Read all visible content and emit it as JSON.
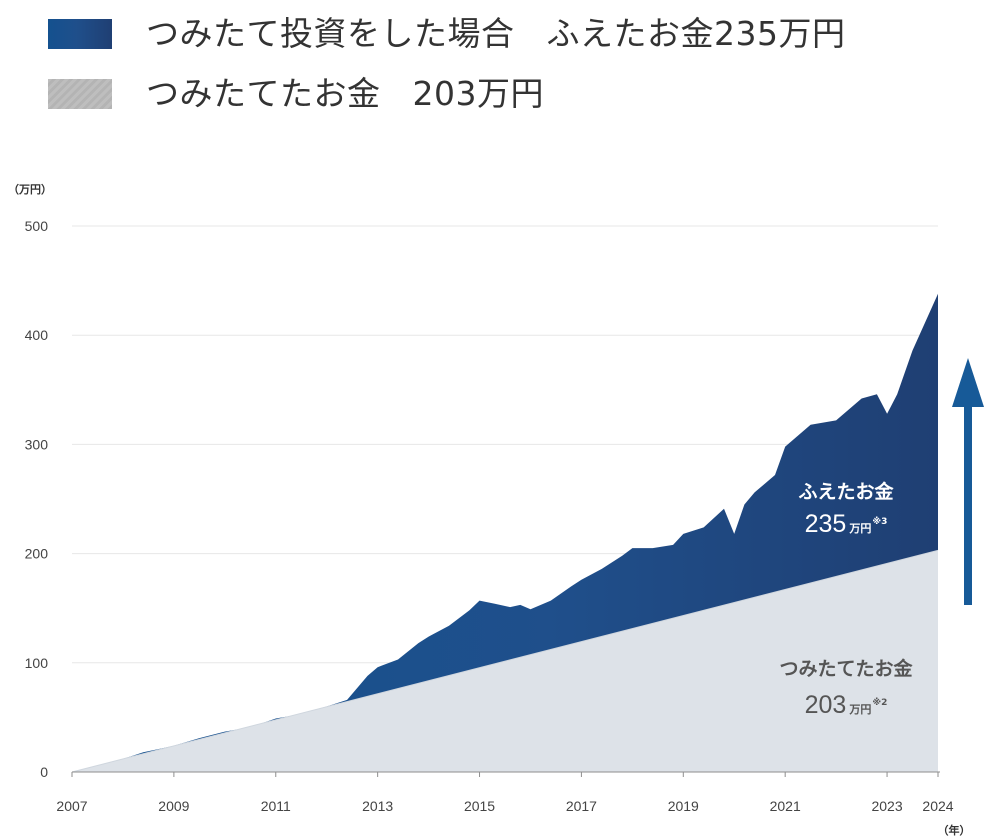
{
  "legend": [
    {
      "label": "つみたて投資をした場合",
      "amount": "ふえたお金235万円"
    },
    {
      "label": "つみたてたお金",
      "amount": "203万円"
    }
  ],
  "colors": {
    "investment_dark": "#1f3f73",
    "investment_mid": "#1f4f8b",
    "investment_light": "#14518f",
    "contribution_fill": "#dde2e8",
    "legend_gray": "#b7b7b7",
    "grid": "#e7e7e7",
    "arrow": "#175a98",
    "text": "#333333",
    "annotation_white": "#ffffff",
    "annotation_gray": "#555555"
  },
  "icons": {
    "growth_arrow": "arrow-up-icon"
  },
  "chart_data": {
    "type": "area",
    "unit_label": "（万円）",
    "year_unit_label": "（年）",
    "x_axis": {
      "min": 2007,
      "max": 2024,
      "tick_labels": [
        "2007",
        "2009",
        "2011",
        "2013",
        "2015",
        "2017",
        "2019",
        "2021",
        "2023",
        "2024"
      ],
      "tick_values": [
        2007,
        2009,
        2011,
        2013,
        2015,
        2017,
        2019,
        2021,
        2023,
        2024
      ]
    },
    "y_axis": {
      "min": 0,
      "max": 500,
      "tick_labels": [
        "0",
        "100",
        "200",
        "300",
        "400",
        "500"
      ],
      "tick_values": [
        0,
        100,
        200,
        300,
        400,
        500
      ]
    },
    "grid": true,
    "series": [
      {
        "name": "つみたて投資をした場合",
        "x": [
          2007.0,
          2007.5,
          2008.0,
          2008.4,
          2008.8,
          2009.0,
          2009.5,
          2010.0,
          2010.5,
          2011.0,
          2011.5,
          2012.0,
          2012.4,
          2012.8,
          2013.0,
          2013.4,
          2013.8,
          2014.0,
          2014.4,
          2014.8,
          2015.0,
          2015.3,
          2015.6,
          2015.8,
          2016.0,
          2016.4,
          2016.8,
          2017.0,
          2017.4,
          2017.8,
          2018.0,
          2018.4,
          2018.8,
          2019.0,
          2019.4,
          2019.8,
          2020.0,
          2020.2,
          2020.4,
          2020.8,
          2021.0,
          2021.5,
          2022.0,
          2022.5,
          2022.8,
          2023.0,
          2023.2,
          2023.5,
          2024.0
        ],
        "y": [
          0.0,
          6.0,
          12.0,
          18.0,
          22.0,
          24.0,
          31.0,
          37.0,
          41.0,
          49.0,
          53.0,
          60.0,
          66.0,
          88.0,
          96.0,
          103.0,
          118.0,
          124.0,
          134.0,
          148.0,
          157.0,
          154.0,
          151.0,
          153.0,
          149.0,
          157.0,
          170.0,
          176.0,
          186.0,
          198.0,
          205.0,
          205.0,
          208.0,
          218.0,
          224.0,
          241.0,
          218.0,
          245.0,
          256.0,
          272.0,
          298.0,
          318.0,
          322.0,
          342.0,
          346.0,
          328.0,
          346.0,
          386.0,
          438.0
        ]
      },
      {
        "name": "つみたてたお金",
        "x": [
          2007,
          2024
        ],
        "y": [
          0,
          203
        ]
      }
    ],
    "annotations": [
      {
        "title": "ふえたお金",
        "value": "235",
        "unit": "万円",
        "note": "※3",
        "series": "つみたて投資をした場合"
      },
      {
        "title": "つみたてたお金",
        "value": "203",
        "unit": "万円",
        "note": "※2",
        "series": "つみたてたお金"
      }
    ]
  }
}
